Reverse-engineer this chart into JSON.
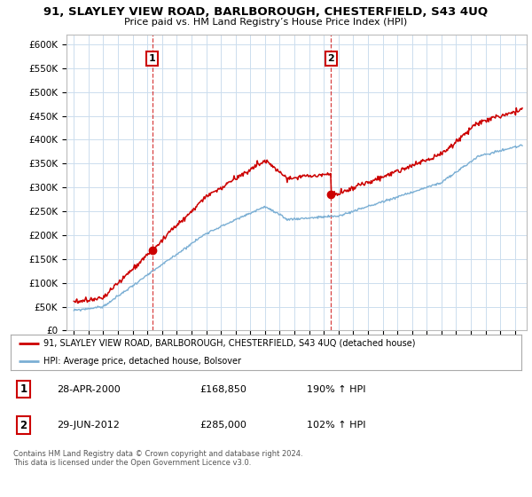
{
  "title": "91, SLAYLEY VIEW ROAD, BARLBOROUGH, CHESTERFIELD, S43 4UQ",
  "subtitle": "Price paid vs. HM Land Registry’s House Price Index (HPI)",
  "ylabel_ticks": [
    "£0",
    "£50K",
    "£100K",
    "£150K",
    "£200K",
    "£250K",
    "£300K",
    "£350K",
    "£400K",
    "£450K",
    "£500K",
    "£550K",
    "£600K"
  ],
  "ylim": [
    0,
    620000
  ],
  "yticks": [
    0,
    50000,
    100000,
    150000,
    200000,
    250000,
    300000,
    350000,
    400000,
    450000,
    500000,
    550000,
    600000
  ],
  "sale1_x": 2000.32,
  "sale1_y": 168850,
  "sale2_x": 2012.49,
  "sale2_y": 285000,
  "hpi_color": "#7bafd4",
  "price_color": "#cc0000",
  "grid_color": "#ccddee",
  "background_color": "#ffffff",
  "legend_line1": "91, SLAYLEY VIEW ROAD, BARLBOROUGH, CHESTERFIELD, S43 4UQ (detached house)",
  "legend_line2": "HPI: Average price, detached house, Bolsover",
  "table_row1": [
    "1",
    "28-APR-2000",
    "£168,850",
    "190% ↑ HPI"
  ],
  "table_row2": [
    "2",
    "29-JUN-2012",
    "£285,000",
    "102% ↑ HPI"
  ],
  "copyright": "Contains HM Land Registry data © Crown copyright and database right 2024.\nThis data is licensed under the Open Government Licence v3.0.",
  "xlim_start": 1994.5,
  "xlim_end": 2025.8,
  "xtick_start": 1995,
  "xtick_end": 2025
}
